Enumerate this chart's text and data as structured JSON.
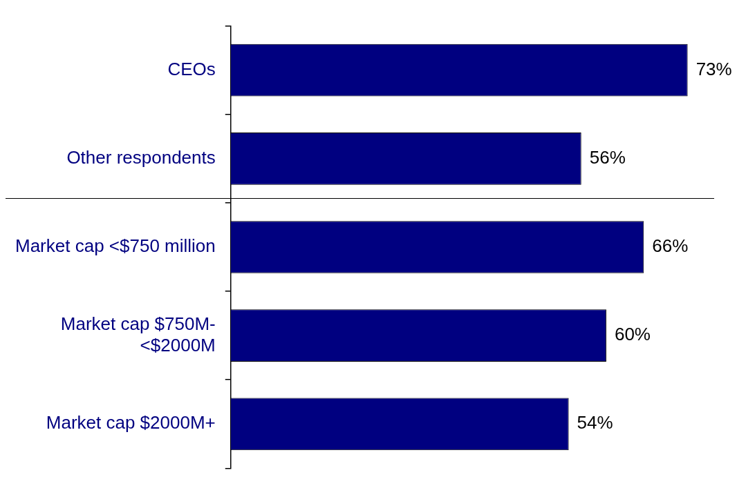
{
  "chart_data": {
    "type": "bar",
    "orientation": "horizontal",
    "categories": [
      "CEOs",
      "Other respondents",
      "Market cap <$750 million",
      "Market cap $750M- <$2000M",
      "Market cap $2000M+"
    ],
    "values": [
      73,
      56,
      66,
      60,
      54
    ],
    "value_labels": [
      "73%",
      "56%",
      "66%",
      "60%",
      "54%"
    ],
    "color": "#000080",
    "tick_labels": "y",
    "grid": false,
    "legend": false
  }
}
